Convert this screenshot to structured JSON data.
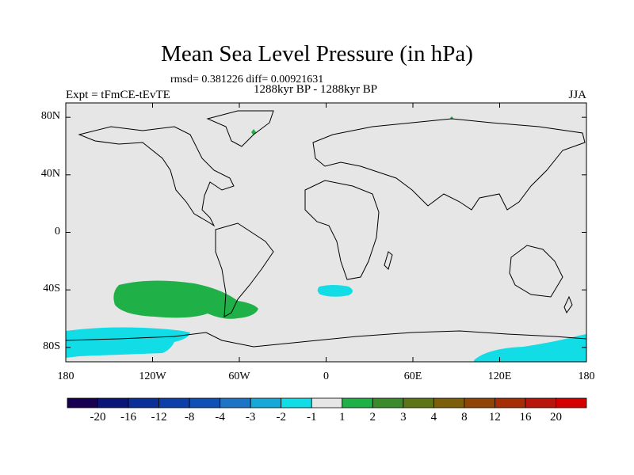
{
  "title": "Mean Sea Level Pressure (in hPa)",
  "subtitle_stats": "rmsd= 0.381226 diff= 0.00921631",
  "subtitle_period": "1288kyr BP - 1288kyr BP",
  "left_label": "Expt = tFmCE-tEvTE",
  "right_label": "JJA",
  "y_axis": {
    "ticks": [
      {
        "value": 80,
        "label": "80N"
      },
      {
        "value": 40,
        "label": "40N"
      },
      {
        "value": 0,
        "label": "0"
      },
      {
        "value": -40,
        "label": "40S"
      },
      {
        "value": -80,
        "label": "80S"
      }
    ],
    "range": [
      -90,
      90
    ]
  },
  "x_axis": {
    "ticks": [
      {
        "value": -180,
        "label": "180"
      },
      {
        "value": -120,
        "label": "120W"
      },
      {
        "value": -60,
        "label": "60W"
      },
      {
        "value": 0,
        "label": "0"
      },
      {
        "value": 60,
        "label": "60E"
      },
      {
        "value": 120,
        "label": "120E"
      },
      {
        "value": 180,
        "label": "180"
      }
    ],
    "range": [
      -180,
      180
    ]
  },
  "colorbar": {
    "labels": [
      "-20",
      "-16",
      "-12",
      "-8",
      "-4",
      "-3",
      "-2",
      "-1",
      "1",
      "2",
      "3",
      "4",
      "8",
      "12",
      "16",
      "20"
    ],
    "colors": [
      "#16004f",
      "#0a1677",
      "#0a2f97",
      "#0c3fa8",
      "#1050b4",
      "#1d74c4",
      "#16a9d8",
      "#12dde6",
      "#e6e6e6",
      "#1fb048",
      "#3b8b2a",
      "#5d7517",
      "#7b5f0a",
      "#8f4506",
      "#a52e04",
      "#b8160a",
      "#d40000"
    ]
  },
  "anomaly_regions": [
    {
      "name": "south-pacific-positive",
      "range": "1 to 2",
      "color": "#1fb048",
      "center": [
        -95,
        -45
      ]
    },
    {
      "name": "south-atlantic-negative",
      "range": "-2 to -1",
      "color": "#12dde6",
      "center": [
        8,
        -40
      ]
    },
    {
      "name": "antarctic-pacific-negative",
      "range": "-2 to -1",
      "color": "#12dde6",
      "center": [
        -145,
        -77
      ]
    },
    {
      "name": "antarctic-australia-negative",
      "range": "-2 to -1",
      "color": "#12dde6",
      "center": [
        150,
        -80
      ]
    }
  ]
}
